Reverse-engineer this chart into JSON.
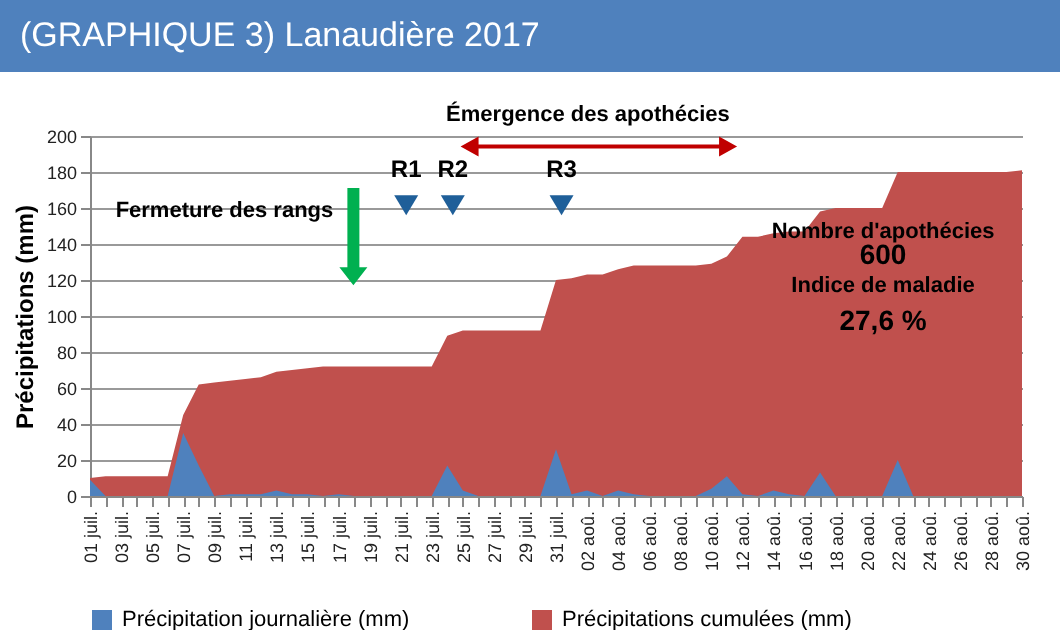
{
  "chart_data": {
    "type": "area",
    "title": "(GRAPHIQUE 3) Lanaudière 2017",
    "ylabel": "Précipitations (mm)",
    "categories": [
      "01 juil.",
      null,
      "03 juil.",
      null,
      "05 juil.",
      null,
      "07 juil.",
      null,
      "09 juil.",
      null,
      "11 juil.",
      null,
      "13 juil.",
      null,
      "15 juil.",
      null,
      "17 juil.",
      null,
      "19 juil.",
      null,
      "21 juil.",
      null,
      "23 juil.",
      null,
      "25 juil.",
      null,
      "27 juil.",
      null,
      "29 juil.",
      null,
      "31 juil.",
      null,
      "02 aoû.",
      null,
      "04 aoû.",
      null,
      "06 aoû.",
      null,
      "08 aoû.",
      null,
      "10 aoû.",
      null,
      "12 aoû.",
      null,
      "14 aoû.",
      null,
      "16 aoû.",
      null,
      "18 aoû.",
      null,
      "20 aoû.",
      null,
      "22 aoû.",
      null,
      "24 aoû.",
      null,
      "26 aoû.",
      null,
      "28 aoû.",
      null,
      "30 aoû."
    ],
    "series": [
      {
        "name": "Précipitation journalière (mm)",
        "color": "#4f81bd",
        "values": [
          9,
          0,
          0,
          0,
          0,
          0,
          35,
          17,
          0,
          1,
          1,
          1,
          3,
          1,
          1,
          0,
          1,
          0,
          0,
          0,
          0,
          0,
          0,
          17,
          3,
          0,
          0,
          0,
          0,
          0,
          26,
          1,
          3,
          0,
          3,
          1,
          0,
          0,
          0,
          0,
          4,
          11,
          1,
          0,
          3,
          1,
          0,
          13,
          0,
          0,
          0,
          0,
          20,
          0,
          0,
          0,
          0,
          0,
          0,
          0,
          0
        ]
      },
      {
        "name": "Précipitations cumulées (mm)",
        "color": "#c0504d",
        "values": [
          10,
          11,
          11,
          11,
          11,
          11,
          45,
          62,
          63,
          64,
          65,
          66,
          69,
          70,
          71,
          72,
          72,
          72,
          72,
          72,
          72,
          72,
          72,
          89,
          92,
          92,
          92,
          92,
          92,
          92,
          120,
          121,
          123,
          123,
          126,
          128,
          128,
          128,
          128,
          128,
          129,
          133,
          144,
          144,
          146,
          147,
          147,
          158,
          160,
          160,
          160,
          160,
          180,
          180,
          180,
          180,
          180,
          180,
          180,
          180,
          181
        ]
      }
    ],
    "ylim": [
      0,
      200
    ],
    "yticks": [
      0,
      20,
      40,
      60,
      80,
      100,
      120,
      140,
      160,
      180,
      200
    ],
    "grid": "y",
    "legend": "bottom",
    "annotations": [
      "Émergence des apothécies",
      "Fermeture des rangs",
      "R1",
      "R2",
      "R3",
      "Nombre d'apothécies",
      "600",
      "Indice de maladie",
      "27,6 %"
    ]
  }
}
